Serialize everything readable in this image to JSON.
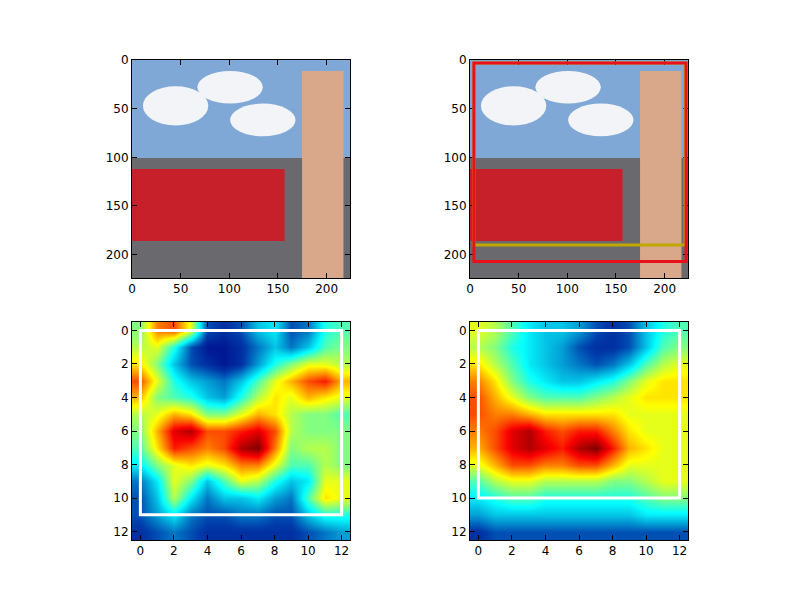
{
  "chart_data": [
    {
      "type": "image",
      "xlim": [
        0,
        224
      ],
      "ylim": [
        224,
        0
      ],
      "xticks": [
        0,
        50,
        100,
        150,
        200
      ],
      "yticks": [
        0,
        50,
        100,
        150,
        200
      ],
      "boxes": []
    },
    {
      "type": "image",
      "xlim": [
        0,
        224
      ],
      "ylim": [
        224,
        0
      ],
      "xticks": [
        0,
        50,
        100,
        150,
        200
      ],
      "yticks": [
        0,
        50,
        100,
        150,
        200
      ],
      "boxes": [
        {
          "x0": 4,
          "y0": 3,
          "x1": 221,
          "y1": 190,
          "color": "#c0a800"
        },
        {
          "x0": 4,
          "y0": 3,
          "x1": 222,
          "y1": 207,
          "color": "#e8101a"
        }
      ]
    },
    {
      "type": "heatmap",
      "xlim": [
        -0.5,
        12.5
      ],
      "ylim": [
        12.5,
        -0.5
      ],
      "xticks": [
        0,
        2,
        4,
        6,
        8,
        10,
        12
      ],
      "yticks": [
        0,
        2,
        4,
        6,
        8,
        10,
        12
      ],
      "color": "jet",
      "zlim": [
        0,
        1
      ],
      "x": [
        0,
        1,
        2,
        3,
        4,
        5,
        6,
        7,
        8,
        9,
        10,
        11,
        12
      ],
      "y": [
        0,
        1,
        2,
        3,
        4,
        5,
        6,
        7,
        8,
        9,
        10,
        11,
        12
      ],
      "z": [
        [
          0.5,
          0.75,
          0.8,
          0.6,
          0.15,
          0.1,
          0.15,
          0.3,
          0.35,
          0.15,
          0.2,
          0.4,
          0.45
        ],
        [
          0.55,
          0.6,
          0.4,
          0.15,
          0.05,
          0.05,
          0.1,
          0.2,
          0.3,
          0.2,
          0.3,
          0.45,
          0.5
        ],
        [
          0.65,
          0.5,
          0.3,
          0.15,
          0.1,
          0.05,
          0.1,
          0.25,
          0.4,
          0.5,
          0.6,
          0.6,
          0.55
        ],
        [
          0.8,
          0.6,
          0.4,
          0.3,
          0.25,
          0.2,
          0.3,
          0.45,
          0.6,
          0.7,
          0.8,
          0.85,
          0.7
        ],
        [
          0.7,
          0.5,
          0.45,
          0.4,
          0.3,
          0.25,
          0.4,
          0.55,
          0.65,
          0.6,
          0.7,
          0.65,
          0.6
        ],
        [
          0.55,
          0.6,
          0.7,
          0.65,
          0.5,
          0.5,
          0.6,
          0.7,
          0.65,
          0.55,
          0.5,
          0.5,
          0.45
        ],
        [
          0.5,
          0.7,
          0.9,
          0.95,
          0.8,
          0.8,
          0.85,
          0.9,
          0.8,
          0.55,
          0.5,
          0.5,
          0.5
        ],
        [
          0.45,
          0.65,
          0.85,
          0.8,
          0.75,
          0.8,
          0.95,
          1.0,
          0.75,
          0.5,
          0.55,
          0.55,
          0.5
        ],
        [
          0.35,
          0.5,
          0.6,
          0.65,
          0.6,
          0.65,
          0.75,
          0.75,
          0.6,
          0.45,
          0.45,
          0.55,
          0.5
        ],
        [
          0.2,
          0.35,
          0.6,
          0.5,
          0.3,
          0.45,
          0.6,
          0.55,
          0.4,
          0.3,
          0.35,
          0.6,
          0.6
        ],
        [
          0.15,
          0.3,
          0.55,
          0.35,
          0.2,
          0.3,
          0.3,
          0.35,
          0.25,
          0.2,
          0.45,
          0.65,
          0.6
        ],
        [
          0.15,
          0.25,
          0.35,
          0.2,
          0.15,
          0.15,
          0.2,
          0.2,
          0.15,
          0.15,
          0.3,
          0.4,
          0.4
        ],
        [
          0.1,
          0.15,
          0.2,
          0.15,
          0.1,
          0.1,
          0.1,
          0.1,
          0.1,
          0.1,
          0.15,
          0.2,
          0.25
        ]
      ],
      "boxes": [
        {
          "x0": 0,
          "y0": 0,
          "x1": 12,
          "y1": 11,
          "color": "#ffffff"
        }
      ]
    },
    {
      "type": "heatmap",
      "xlim": [
        -0.5,
        12.5
      ],
      "ylim": [
        12.5,
        -0.5
      ],
      "xticks": [
        0,
        2,
        4,
        6,
        8,
        10,
        12
      ],
      "yticks": [
        0,
        2,
        4,
        6,
        8,
        10,
        12
      ],
      "color": "jet",
      "zlim": [
        0,
        1
      ],
      "x": [
        0,
        1,
        2,
        3,
        4,
        5,
        6,
        7,
        8,
        9,
        10,
        11,
        12
      ],
      "y": [
        0,
        1,
        2,
        3,
        4,
        5,
        6,
        7,
        8,
        9,
        10,
        11,
        12
      ],
      "z": [
        [
          0.6,
          0.55,
          0.45,
          0.35,
          0.3,
          0.3,
          0.25,
          0.15,
          0.1,
          0.15,
          0.3,
          0.4,
          0.45
        ],
        [
          0.55,
          0.5,
          0.4,
          0.35,
          0.3,
          0.25,
          0.15,
          0.1,
          0.1,
          0.15,
          0.3,
          0.45,
          0.5
        ],
        [
          0.65,
          0.55,
          0.45,
          0.35,
          0.3,
          0.25,
          0.2,
          0.15,
          0.2,
          0.3,
          0.45,
          0.55,
          0.6
        ],
        [
          0.75,
          0.65,
          0.5,
          0.4,
          0.35,
          0.3,
          0.3,
          0.35,
          0.4,
          0.5,
          0.6,
          0.65,
          0.65
        ],
        [
          0.8,
          0.7,
          0.6,
          0.5,
          0.45,
          0.45,
          0.45,
          0.5,
          0.55,
          0.6,
          0.65,
          0.65,
          0.65
        ],
        [
          0.8,
          0.75,
          0.75,
          0.7,
          0.65,
          0.65,
          0.65,
          0.65,
          0.65,
          0.6,
          0.6,
          0.6,
          0.6
        ],
        [
          0.75,
          0.8,
          0.9,
          0.95,
          0.85,
          0.8,
          0.85,
          0.85,
          0.75,
          0.65,
          0.6,
          0.6,
          0.6
        ],
        [
          0.7,
          0.8,
          0.9,
          0.95,
          0.9,
          0.85,
          0.95,
          1.0,
          0.85,
          0.7,
          0.65,
          0.6,
          0.6
        ],
        [
          0.6,
          0.7,
          0.8,
          0.8,
          0.75,
          0.75,
          0.8,
          0.8,
          0.7,
          0.6,
          0.6,
          0.6,
          0.6
        ],
        [
          0.45,
          0.55,
          0.6,
          0.6,
          0.55,
          0.55,
          0.55,
          0.55,
          0.5,
          0.5,
          0.55,
          0.6,
          0.6
        ],
        [
          0.35,
          0.4,
          0.45,
          0.45,
          0.4,
          0.4,
          0.4,
          0.4,
          0.4,
          0.4,
          0.45,
          0.5,
          0.5
        ],
        [
          0.25,
          0.3,
          0.3,
          0.3,
          0.3,
          0.3,
          0.3,
          0.3,
          0.3,
          0.3,
          0.35,
          0.35,
          0.35
        ],
        [
          0.1,
          0.15,
          0.15,
          0.15,
          0.15,
          0.15,
          0.15,
          0.15,
          0.15,
          0.15,
          0.15,
          0.15,
          0.15
        ]
      ],
      "boxes": [
        {
          "x0": 0,
          "y0": 0,
          "x1": 12,
          "y1": 10,
          "color": "#ffffff"
        }
      ]
    }
  ]
}
